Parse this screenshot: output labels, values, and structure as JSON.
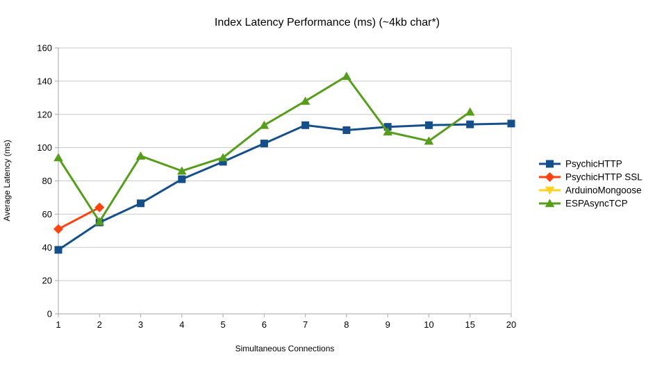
{
  "chart_data": {
    "type": "line",
    "title": "Index Latency Performance (ms) (~4kb char*)",
    "xlabel": "Simultaneous Connections",
    "ylabel": "Average Latency (ms)",
    "categories": [
      "1",
      "2",
      "3",
      "4",
      "5",
      "6",
      "7",
      "8",
      "9",
      "10",
      "15",
      "20"
    ],
    "ylim": [
      0,
      160
    ],
    "ytick_interval": 20,
    "yticks": [
      "0",
      "20",
      "40",
      "60",
      "80",
      "100",
      "120",
      "140",
      "160"
    ],
    "grid": "horizontal",
    "legend_position": "right",
    "series": [
      {
        "name": "PsychicHTTP",
        "color": "#144f8a",
        "marker": "square",
        "values": [
          38.5,
          55,
          66.5,
          81,
          91.5,
          102.5,
          113.5,
          110.5,
          112.5,
          113.5,
          114,
          114.5
        ]
      },
      {
        "name": "PsychicHTTP SSL",
        "color": "#ff420e",
        "marker": "diamond",
        "values": [
          51,
          64,
          null,
          null,
          null,
          null,
          null,
          null,
          null,
          null,
          null,
          null
        ]
      },
      {
        "name": "ArduinoMongoose",
        "color": "#ffd320",
        "marker": "triangle-down",
        "values": [
          null,
          null,
          null,
          null,
          null,
          null,
          null,
          null,
          null,
          null,
          null,
          null
        ]
      },
      {
        "name": "ESPAsyncTCP",
        "color": "#579d1c",
        "marker": "triangle-up",
        "values": [
          94,
          55.5,
          95,
          86,
          94,
          113.5,
          128,
          143,
          109.5,
          104,
          121.5,
          null
        ]
      }
    ],
    "colors": {
      "background": "#ffffff",
      "grid": "#c8c8c8",
      "axis": "#a6a6a6",
      "text": "#000000"
    }
  }
}
